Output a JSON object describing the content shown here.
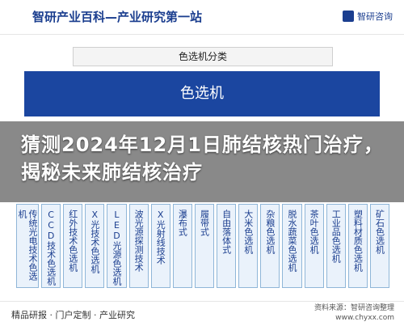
{
  "header": {
    "title": "智研产业百科—产业研究第一站",
    "brand": "智研咨询"
  },
  "section_header": "色选机分类",
  "main_box": "色选机",
  "headline": "猜测2024年12月1日肺结核热门治疗，揭秘未来肺结核治疗",
  "columns": [
    "传统光电技术色选机",
    "CCD技术色选机",
    "红外技术色选机",
    "X光技术色选机",
    "LED光源色选机",
    "波光源探测技术",
    "X光射线技术",
    "瀑布式",
    "履带式",
    "自由落体式",
    "大米色选机",
    "杂粮色选机",
    "脱水蔬菜色选机",
    "茶叶色选机",
    "工业品色选机",
    "塑料材质色选机",
    "矿石色选机"
  ],
  "footer": {
    "left": "精品研报 · 门户定制 · 产业研究",
    "right_line1": "资料来源：智研咨询整理",
    "right_line2": "www.chyxx.com"
  },
  "colors": {
    "brand_blue": "#1b46a0",
    "column_bg": "#eaf2fb"
  }
}
